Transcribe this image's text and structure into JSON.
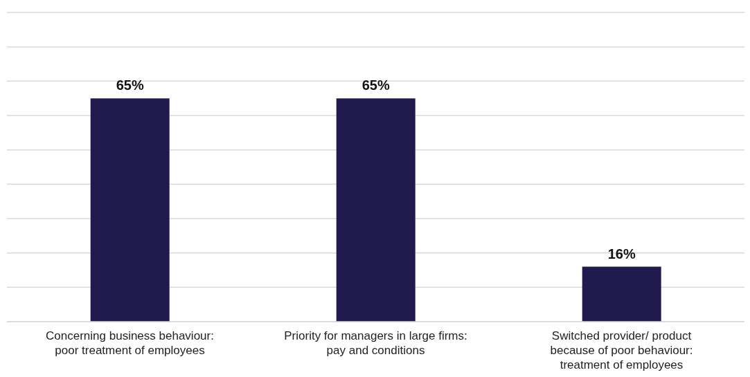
{
  "chart_data": {
    "type": "bar",
    "categories": [
      "Concerning business behaviour: poor treatment of employees",
      "Priority for managers in large firms: pay and conditions",
      "Switched provider/ product because of poor behaviour: treatment of employees"
    ],
    "values": [
      65,
      65,
      16
    ],
    "color": "#211a4f",
    "value_labels": [
      "65%",
      "65%",
      "16%"
    ],
    "ylim": [
      0,
      90
    ],
    "yticks": [
      {
        "value": 0,
        "label": null
      },
      {
        "value": 10,
        "label": null
      },
      {
        "value": 20,
        "label": null
      },
      {
        "value": 30,
        "label": null
      },
      {
        "value": 40,
        "label": null
      },
      {
        "value": 50,
        "label": null
      },
      {
        "value": 60,
        "label": null
      },
      {
        "value": 70,
        "label": null
      },
      {
        "value": 80,
        "label": null
      },
      {
        "value": 90,
        "label": null
      }
    ],
    "grid": "y",
    "tick_labels": "x"
  }
}
